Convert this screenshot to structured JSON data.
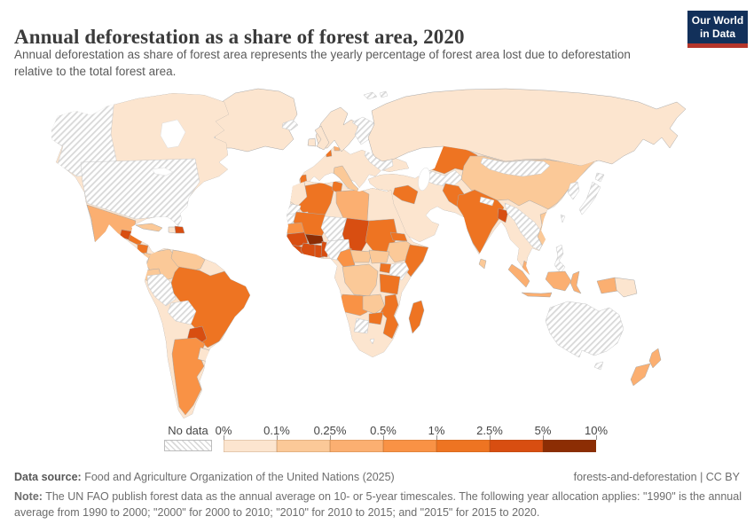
{
  "header": {
    "title": "Annual deforestation as a share of forest area, 2020",
    "subtitle": "Annual deforestation as share of forest area represents the yearly percentage of forest area lost due to deforestation relative to the total forest area.",
    "logo": {
      "line1": "Our World",
      "line2": "in Data",
      "bg_color": "#12305a",
      "accent_color": "#b5352a"
    }
  },
  "legend": {
    "no_data_label": "No data",
    "tick_labels": [
      "0%",
      "0.1%",
      "0.25%",
      "0.5%",
      "1%",
      "2.5%",
      "5%",
      "10%"
    ]
  },
  "map": {
    "palette": {
      "0-0.1%": "#fce5cf",
      "0.1-0.25%": "#fbc998",
      "0.25-0.5%": "#fbaf71",
      "0.5-1%": "#f99245",
      "1-2.5%": "#ee7422",
      "2.5-5%": "#d84e11",
      "5-10%": "#8c2d04",
      "No data": "hatch"
    },
    "regions": {
      "canada": "0-0.1%",
      "greenland": "0-0.1%",
      "iceland": "No data",
      "svalbard": "No data",
      "united-states": "No data",
      "mexico": "0.25-0.5%",
      "guatemala": "2.5-5%",
      "honduras": "1-2.5%",
      "nicaragua": "1-2.5%",
      "costa-rica": "0.1-0.25%",
      "panama": "0.1-0.25%",
      "cuba": "0.1-0.25%",
      "haiti": "0-0.1%",
      "dominican-republic": "2.5-5%",
      "chile": "0-0.1%",
      "colombia": "0.1-0.25%",
      "venezuela": "0.1-0.25%",
      "ecuador": "0.1-0.25%",
      "peru": "No data",
      "brazil": "1-2.5%",
      "bolivia": "No data",
      "paraguay": "2.5-5%",
      "argentina": "0.5-1%",
      "uruguay": "0-0.1%",
      "europe-other": "0-0.1%",
      "norway": "0-0.1%",
      "finland": "No data",
      "united-kingdom": "0-0.1%",
      "ireland": "0-0.1%",
      "portugal": "1-2.5%",
      "netherlands": "1-2.5%",
      "denmark": "0.25-0.5%",
      "belarus": "No data",
      "italy": "0.1-0.25%",
      "russia": "0-0.1%",
      "kazakhstan": "1-2.5%",
      "uzbekistan": "No data",
      "middle-east": "0-0.1%",
      "iraq": "1-2.5%",
      "china": "0.1-0.25%",
      "mongolia": "No data",
      "korea": "No data",
      "japan": "No data",
      "taiwan": "No data",
      "pakistan": "1-2.5%",
      "india": "1-2.5%",
      "nepal": "No data",
      "bangladesh": "2.5-5%",
      "thailand": "No data",
      "vietnam": "0.1-0.25%",
      "malaysia": "0.25-0.5%",
      "philippines": "No data",
      "sri-lanka": "0.1-0.25%",
      "indonesia": "0.25-0.5%",
      "papua-new-guinea": "0-0.1%",
      "australia": "No data",
      "new-zealand": "0.25-0.5%",
      "africa-other": "0-0.1%",
      "morocco": "0-0.1%",
      "western-sahara": "No data",
      "algeria": "1-2.5%",
      "tunisia": "1-2.5%",
      "libya": "0.25-0.5%",
      "mauritania": "No data",
      "mali": "1-2.5%",
      "niger": "No data",
      "chad": "2.5-5%",
      "sudan": "1-2.5%",
      "eritrea": "1-2.5%",
      "ethiopia": "0.1-0.25%",
      "somalia": "1-2.5%",
      "senegal": "0.5-1%",
      "guinea": "2.5-5%",
      "sierra-leone": "2.5-5%",
      "cote-divoire": "2.5-5%",
      "burkina-faso": "5-10%",
      "ghana": "2.5-5%",
      "benin": "2.5-5%",
      "nigeria": "No data",
      "cameroon": "0.5-1%",
      "central-african-republic": "0.1-0.25%",
      "south-sudan": "0.1-0.25%",
      "uganda": "1-2.5%",
      "kenya": "No data",
      "democratic-republic-of-congo": "0.1-0.25%",
      "tanzania": "1-2.5%",
      "angola": "0.5-1%",
      "zambia": "0.1-0.25%",
      "malawi": "1-2.5%",
      "mozambique": "1-2.5%",
      "zimbabwe": "1-2.5%",
      "botswana": "No data",
      "lesotho": "No data",
      "madagascar": "1-2.5%"
    }
  },
  "footer": {
    "data_source_label": "Data source:",
    "data_source": " Food and Agriculture Organization of the United Nations (2025)",
    "attribution": "forests-and-deforestation | CC BY",
    "note_label": "Note:",
    "note": " The UN FAO publish forest data as the annual average on 10- or 5-year timescales. The following year allocation applies: \"1990\" is the annual average from 1990 to 2000; \"2000\" for 2000 to 2010; \"2010\" for 2010 to 2015; and \"2015\" for 2015 to 2020."
  },
  "chart_data": {
    "type": "choropleth",
    "title": "Annual deforestation as a share of forest area, 2020",
    "unit": "share of forest area lost per year",
    "bins": [
      "0-0.1%",
      "0.1-0.25%",
      "0.25-0.5%",
      "0.5-1%",
      "1-2.5%",
      "2.5-5%",
      "5-10%",
      "No data"
    ],
    "legend_ticks": [
      "0%",
      "0.1%",
      "0.25%",
      "0.5%",
      "1%",
      "2.5%",
      "5%",
      "10%"
    ],
    "legend_position": "bottom",
    "countries": {
      "Canada": "0-0.1%",
      "Greenland": "0-0.1%",
      "United States": "No data",
      "Mexico": "0.25-0.5%",
      "Guatemala": "2.5-5%",
      "Honduras": "1-2.5%",
      "Nicaragua": "1-2.5%",
      "Costa Rica": "0.1-0.25%",
      "Panama": "0.1-0.25%",
      "Cuba": "0.1-0.25%",
      "Haiti": "0-0.1%",
      "Dominican Republic": "2.5-5%",
      "Colombia": "0.1-0.25%",
      "Venezuela": "0.1-0.25%",
      "Ecuador": "0.1-0.25%",
      "Peru": "No data",
      "Brazil": "1-2.5%",
      "Bolivia": "No data",
      "Paraguay": "2.5-5%",
      "Argentina": "0.5-1%",
      "Chile": "0-0.1%",
      "Uruguay": "0-0.1%",
      "Guyana": "0-0.1%",
      "Suriname": "0-0.1%",
      "United Kingdom": "0-0.1%",
      "Ireland": "0-0.1%",
      "France": "0-0.1%",
      "Spain": "0-0.1%",
      "Portugal": "1-2.5%",
      "Germany": "0-0.1%",
      "Poland": "0-0.1%",
      "Norway": "0-0.1%",
      "Sweden": "0-0.1%",
      "Finland": "No data",
      "Iceland": "No data",
      "Netherlands": "1-2.5%",
      "Denmark": "0.25-0.5%",
      "Italy": "0.1-0.25%",
      "Greece": "0-0.1%",
      "Ukraine": "0-0.1%",
      "Belarus": "No data",
      "Russia": "0-0.1%",
      "Turkey": "0-0.1%",
      "Iraq": "1-2.5%",
      "Saudi Arabia": "0-0.1%",
      "Iran": "0-0.1%",
      "Afghanistan": "0-0.1%",
      "Kazakhstan": "1-2.5%",
      "Uzbekistan": "No data",
      "Turkmenistan": "No data",
      "Mongolia": "No data",
      "China": "0.1-0.25%",
      "Japan": "No data",
      "North Korea": "No data",
      "South Korea": "No data",
      "Taiwan": "No data",
      "Pakistan": "1-2.5%",
      "India": "1-2.5%",
      "Nepal": "No data",
      "Bangladesh": "2.5-5%",
      "Myanmar": "No data",
      "Thailand": "No data",
      "Laos": "No data",
      "Cambodia": "No data",
      "Vietnam": "0.1-0.25%",
      "Malaysia": "0.25-0.5%",
      "Philippines": "No data",
      "Sri Lanka": "0.1-0.25%",
      "Indonesia": "0.25-0.5%",
      "Papua New Guinea": "0-0.1%",
      "Australia": "No data",
      "New Zealand": "0.25-0.5%",
      "Morocco": "0-0.1%",
      "Western Sahara": "No data",
      "Algeria": "1-2.5%",
      "Tunisia": "1-2.5%",
      "Libya": "0.25-0.5%",
      "Egypt": "0-0.1%",
      "Mauritania": "No data",
      "Mali": "1-2.5%",
      "Niger": "No data",
      "Chad": "2.5-5%",
      "Sudan": "1-2.5%",
      "Eritrea": "1-2.5%",
      "Ethiopia": "0.1-0.25%",
      "Somalia": "1-2.5%",
      "Senegal": "0.5-1%",
      "Guinea": "2.5-5%",
      "Sierra Leone": "2.5-5%",
      "Cote d'Ivoire": "2.5-5%",
      "Burkina Faso": "5-10%",
      "Ghana": "2.5-5%",
      "Benin": "2.5-5%",
      "Nigeria": "No data",
      "Cameroon": "0.5-1%",
      "Central African Republic": "0.1-0.25%",
      "South Sudan": "0.1-0.25%",
      "Uganda": "1-2.5%",
      "Kenya": "No data",
      "Democratic Republic of Congo": "0.1-0.25%",
      "Republic of Congo": "0-0.1%",
      "Gabon": "0-0.1%",
      "Tanzania": "1-2.5%",
      "Angola": "0.5-1%",
      "Zambia": "0.1-0.25%",
      "Malawi": "1-2.5%",
      "Mozambique": "1-2.5%",
      "Zimbabwe": "1-2.5%",
      "Botswana": "No data",
      "Namibia": "0-0.1%",
      "South Africa": "0-0.1%",
      "Lesotho": "No data",
      "Madagascar": "1-2.5%"
    }
  }
}
